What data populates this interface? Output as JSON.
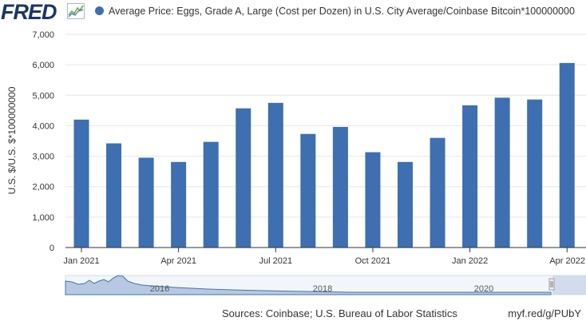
{
  "header": {
    "logo_text": "FRED",
    "legend_label": "Average Price: Eggs, Grade A, Large (Cost per Dozen) in U.S. City Average/Coinbase Bitcoin*100000000"
  },
  "colors": {
    "series": "#3e6fb0",
    "logo": "#1c3664",
    "grid": "#e6e6e6",
    "navigator_fill": "#b7c9e2",
    "navigator_line": "#4572a7"
  },
  "chart_data": {
    "type": "bar",
    "categories": [
      "2021-01",
      "2021-02",
      "2021-03",
      "2021-04",
      "2021-05",
      "2021-06",
      "2021-07",
      "2021-08",
      "2021-09",
      "2021-10",
      "2021-11",
      "2021-12",
      "2022-01",
      "2022-02",
      "2022-03",
      "2022-04"
    ],
    "values": [
      4200,
      3420,
      2950,
      2810,
      3470,
      4570,
      4750,
      3730,
      3960,
      3130,
      2810,
      3600,
      4670,
      4920,
      4860,
      6060
    ],
    "ylabel": "U.S. $/U.S. $*100000000",
    "ylim": [
      0,
      7000
    ],
    "yticks": [
      "0",
      "1,000",
      "2,000",
      "3,000",
      "4,000",
      "5,000",
      "6,000",
      "7,000"
    ],
    "xticks": [
      {
        "label": "Jan 2021",
        "index": 0
      },
      {
        "label": "Apr 2021",
        "index": 3
      },
      {
        "label": "Jul 2021",
        "index": 6
      },
      {
        "label": "Oct 2021",
        "index": 9
      },
      {
        "label": "Jan 2022",
        "index": 12
      },
      {
        "label": "Apr 2022",
        "index": 15
      }
    ],
    "grid": true,
    "legend": "top-left"
  },
  "navigator": {
    "labels": [
      "2016",
      "2018",
      "2020"
    ]
  },
  "footer": {
    "sources": "Sources: Coinbase; U.S. Bureau of Labor Statistics",
    "link": "myf.red/g/PUbY"
  }
}
